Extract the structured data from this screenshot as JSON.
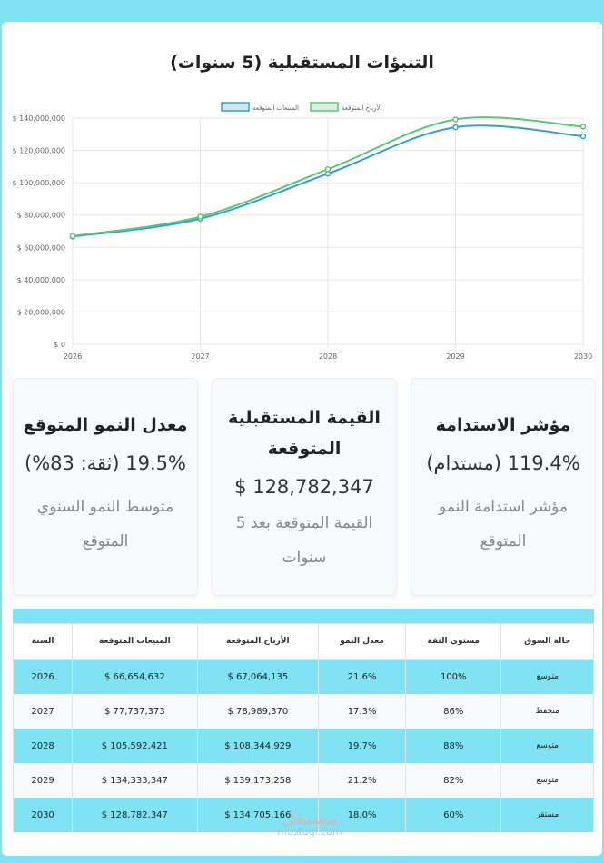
{
  "title": "التنبؤات المستقبلية (5 سنوات)",
  "chart_data": {
    "type": "line",
    "x": [
      "2026",
      "2027",
      "2028",
      "2029",
      "2030"
    ],
    "series": [
      {
        "name": "المبيعات المتوقعة",
        "values": [
          66654632,
          77737373,
          105592421,
          134333347,
          128782347
        ],
        "color": "#36a2c9"
      },
      {
        "name": "الأرباح المتوقعة",
        "values": [
          67064135,
          78989370,
          108344929,
          139173258,
          134705166
        ],
        "color": "#5ac87a"
      }
    ],
    "ylim": [
      0,
      140000000
    ],
    "yticks": [
      "$ 0",
      "$ 20,000,000",
      "$ 40,000,000",
      "$ 60,000,000",
      "$ 80,000,000",
      "$ 100,000,000",
      "$ 120,000,000",
      "$ 140,000,000"
    ],
    "ytick_values": [
      0,
      20000000,
      40000000,
      60000000,
      80000000,
      100000000,
      120000000,
      140000000
    ],
    "grid": true,
    "legend": "top-center"
  },
  "kpis": [
    {
      "title": "مؤشر الاستدامة",
      "value": "119.4% (مستدام)",
      "sub": "مؤشر استدامة النمو المتوقع"
    },
    {
      "title": "القيمة المستقبلية المتوقعة",
      "value": "$ 128,782,347",
      "sub": "القيمة المتوقعة بعد 5 سنوات"
    },
    {
      "title": "معدل النمو المتوقع",
      "value": "19.5% (ثقة: 83%)",
      "sub": "متوسط النمو السنوي المتوقع"
    }
  ],
  "table": {
    "headers": [
      "السنة",
      "المبيعات المتوقعة",
      "الأرباح المتوقعة",
      "معدل النمو",
      "مستوى الثقة",
      "حالة السوق"
    ],
    "rows": [
      [
        "2026",
        "$ 66,654,632",
        "$ 67,064,135",
        "21.6%",
        "100%",
        "متوسع"
      ],
      [
        "2027",
        "$ 77,737,373",
        "$ 78,989,370",
        "17.3%",
        "86%",
        "متحفظ"
      ],
      [
        "2028",
        "$ 105,592,421",
        "$ 108,344,929",
        "19.7%",
        "88%",
        "متوسع"
      ],
      [
        "2029",
        "$ 134,333,347",
        "$ 139,173,258",
        "21.2%",
        "82%",
        "متوسع"
      ],
      [
        "2030",
        "$ 128,782,347",
        "$ 134,705,166",
        "18.0%",
        "60%",
        "مستقر"
      ]
    ]
  },
  "watermark": {
    "ar": "مستقل",
    "en": "mostaql.com"
  }
}
